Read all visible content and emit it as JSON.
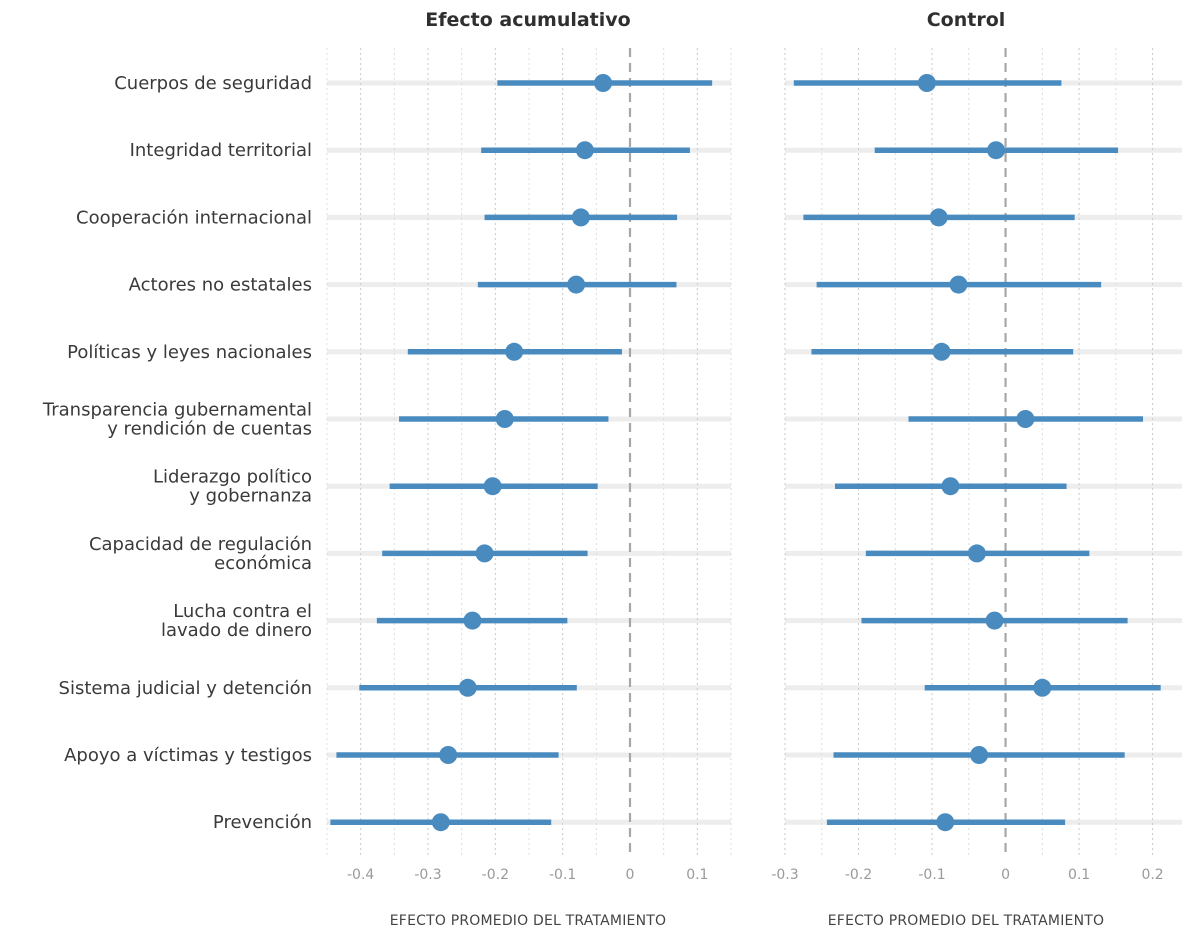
{
  "chart_data": [
    {
      "type": "forest",
      "title": "Efecto acumulativo",
      "xlabel": "EFECTO PROMEDIO DEL TRATAMIENTO",
      "xlim": [
        -0.45,
        0.15
      ],
      "xticks": [
        -0.4,
        -0.3,
        -0.2,
        -0.1,
        0,
        0.1
      ],
      "xtick_labels": [
        "-0.4",
        "-0.3",
        "-0.2",
        "-0.1",
        "0",
        "0.1"
      ],
      "reference_line": 0,
      "color": "#4a8bbf",
      "categories": [
        [
          "Cuerpos de seguridad"
        ],
        [
          "Integridad territorial"
        ],
        [
          "Cooperación internacional"
        ],
        [
          "Actores no estatales"
        ],
        [
          "Políticas y leyes nacionales"
        ],
        [
          "Transparencia gubernamental",
          "y rendición de cuentas"
        ],
        [
          "Liderazgo político",
          "y gobernanza"
        ],
        [
          "Capacidad de regulación",
          "económica"
        ],
        [
          "Lucha contra el",
          "lavado de dinero"
        ],
        [
          "Sistema judicial y detención"
        ],
        [
          "Apoyo a víctimas y testigos"
        ],
        [
          "Prevención"
        ]
      ],
      "estimates": [
        -0.04,
        -0.067,
        -0.073,
        -0.08,
        -0.172,
        -0.186,
        -0.204,
        -0.216,
        -0.234,
        -0.241,
        -0.27,
        -0.281
      ],
      "lower": [
        -0.197,
        -0.221,
        -0.216,
        -0.226,
        -0.33,
        -0.343,
        -0.357,
        -0.368,
        -0.376,
        -0.402,
        -0.436,
        -0.445
      ],
      "upper": [
        0.122,
        0.089,
        0.07,
        0.069,
        -0.012,
        -0.032,
        -0.048,
        -0.063,
        -0.093,
        -0.079,
        -0.106,
        -0.117
      ]
    },
    {
      "type": "forest",
      "title": "Control",
      "xlabel": "EFECTO PROMEDIO DEL TRATAMIENTO",
      "xlim": [
        -0.3,
        0.24
      ],
      "xticks": [
        -0.3,
        -0.2,
        -0.1,
        0,
        0.1,
        0.2
      ],
      "xtick_labels": [
        "-0.3",
        "-0.2",
        "-0.1",
        "0",
        "0.1",
        "0.2"
      ],
      "reference_line": 0,
      "color": "#4a8bbf",
      "estimates": [
        -0.107,
        -0.013,
        -0.091,
        -0.064,
        -0.087,
        0.027,
        -0.075,
        -0.039,
        -0.015,
        0.05,
        -0.036,
        -0.082
      ],
      "lower": [
        -0.288,
        -0.178,
        -0.275,
        -0.257,
        -0.264,
        -0.132,
        -0.232,
        -0.19,
        -0.196,
        -0.11,
        -0.234,
        -0.243
      ],
      "upper": [
        0.076,
        0.153,
        0.094,
        0.13,
        0.092,
        0.187,
        0.083,
        0.114,
        0.166,
        0.211,
        0.162,
        0.081
      ]
    }
  ]
}
